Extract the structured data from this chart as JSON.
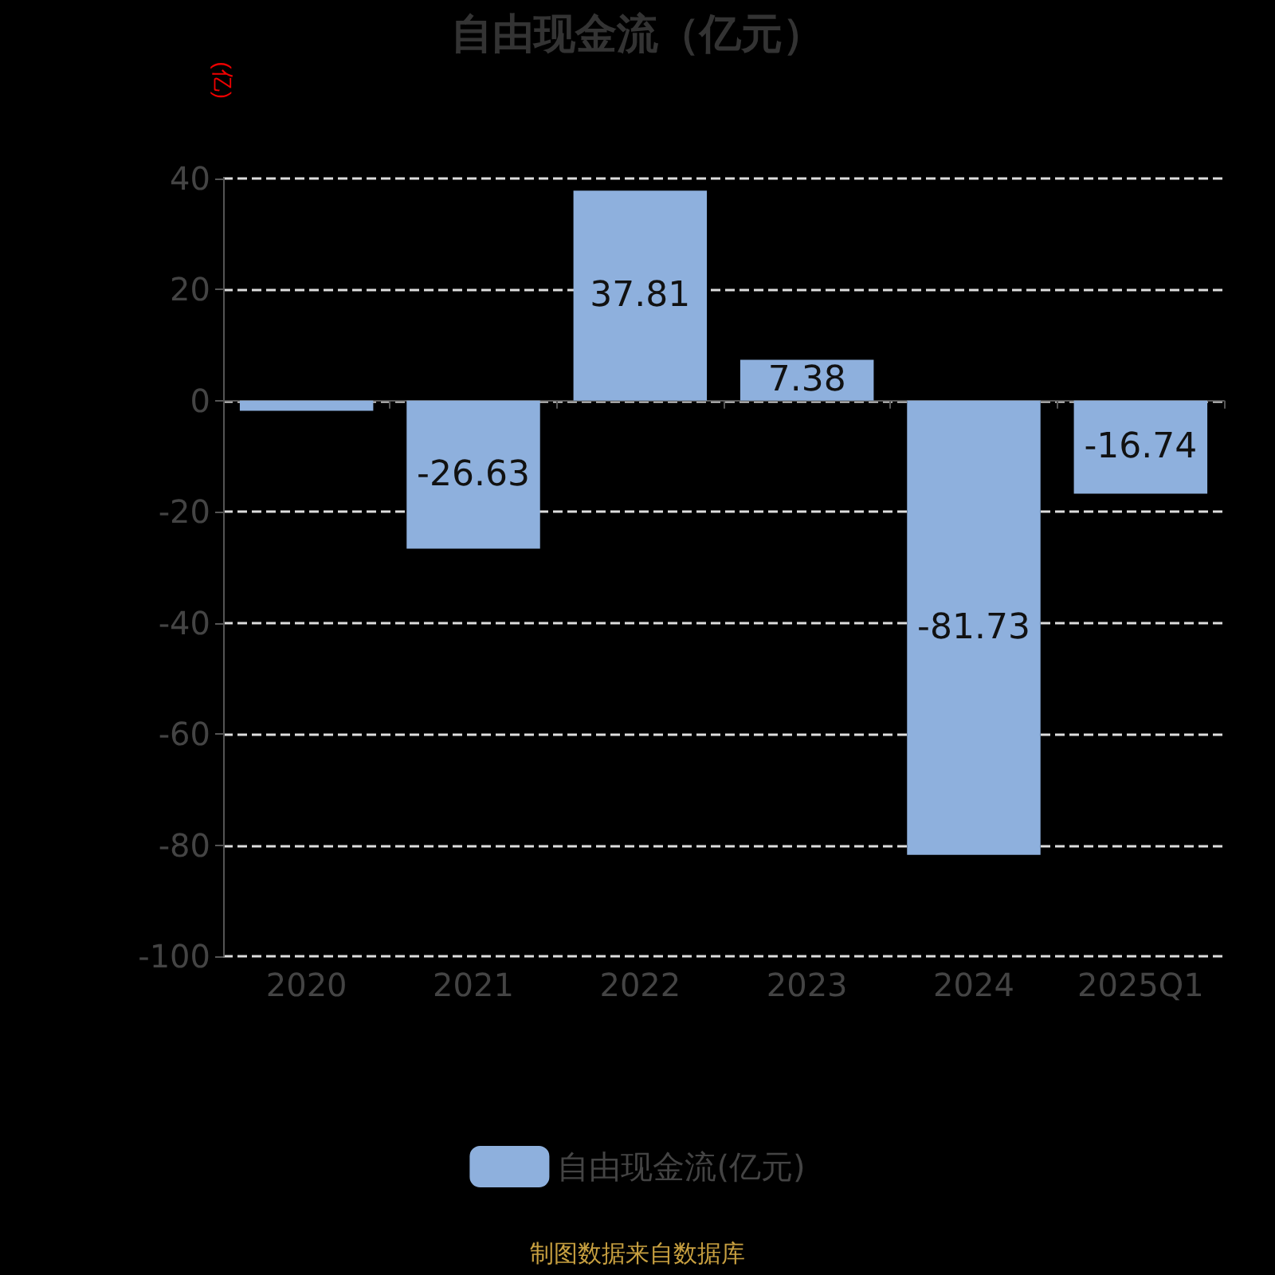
{
  "chart_data": {
    "type": "bar",
    "title": "自由现金流（亿元）",
    "ylabel": "(亿)",
    "categories": [
      "2020",
      "2021",
      "2022",
      "2023",
      "2024",
      "2025Q1"
    ],
    "series": [
      {
        "name": "自由现金流(亿元)",
        "color": "#8eb0dd",
        "values": [
          -1.8,
          -26.63,
          37.81,
          7.38,
          -81.73,
          -16.74
        ]
      }
    ],
    "ylim": [
      -100,
      40
    ],
    "yticks": [
      -100,
      -80,
      -60,
      -40,
      -20,
      0,
      20,
      40
    ],
    "grid": "y",
    "legend": "bottom",
    "value_labels": [
      null,
      "-26.63",
      "37.81",
      "7.38",
      "-81.73",
      "-16.74"
    ],
    "annotations": [
      "制图数据来自数据库"
    ]
  }
}
